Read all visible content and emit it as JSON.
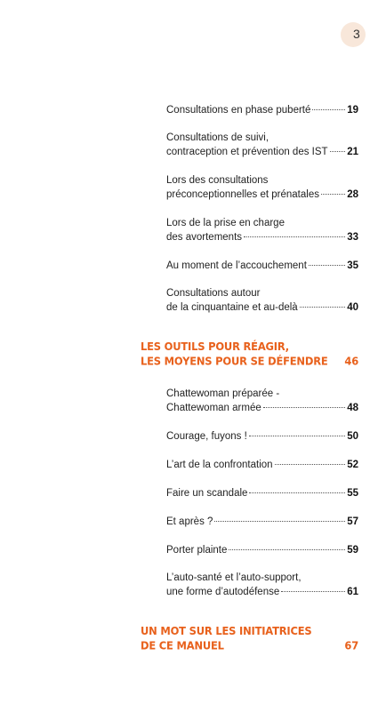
{
  "page_number": "3",
  "entries": [
    {
      "lines": [
        "Consultations en phase puberté"
      ],
      "page": "19"
    },
    {
      "lines": [
        "Consultations de suivi,",
        "contraception et prévention des IST"
      ],
      "page": "21"
    },
    {
      "lines": [
        "Lors des consultations",
        "préconceptionnelles et prénatales"
      ],
      "page": "28"
    },
    {
      "lines": [
        "Lors de la prise en charge",
        "des avortements"
      ],
      "page": "33"
    },
    {
      "lines": [
        "Au moment de l’accouchement"
      ],
      "page": "35"
    },
    {
      "lines": [
        "Consultations autour",
        "de la cinquantaine et au-delà"
      ],
      "page": "40"
    }
  ],
  "section1": {
    "lines": [
      "LES OUTILS POUR RÉAGIR,",
      "LES MOYENS POUR SE DÉFENDRE"
    ],
    "page": "46"
  },
  "entries2": [
    {
      "lines": [
        "Chattewoman préparée -",
        "Chattewoman armée"
      ],
      "page": "48"
    },
    {
      "lines": [
        "Courage, fuyons !"
      ],
      "page": "50"
    },
    {
      "lines": [
        "L’art de la confrontation"
      ],
      "page": "52"
    },
    {
      "lines": [
        "Faire un scandale"
      ],
      "page": "55"
    },
    {
      "lines": [
        "Et après ?"
      ],
      "page": "57"
    },
    {
      "lines": [
        "Porter plainte"
      ],
      "page": "59"
    },
    {
      "lines": [
        "L’auto-santé et l’auto-support,",
        "une forme d’autodéfense"
      ],
      "page": "61"
    }
  ],
  "section2": {
    "lines": [
      "UN MOT SUR LES INITIATRICES",
      "DE CE MANUEL"
    ],
    "page": "67"
  }
}
